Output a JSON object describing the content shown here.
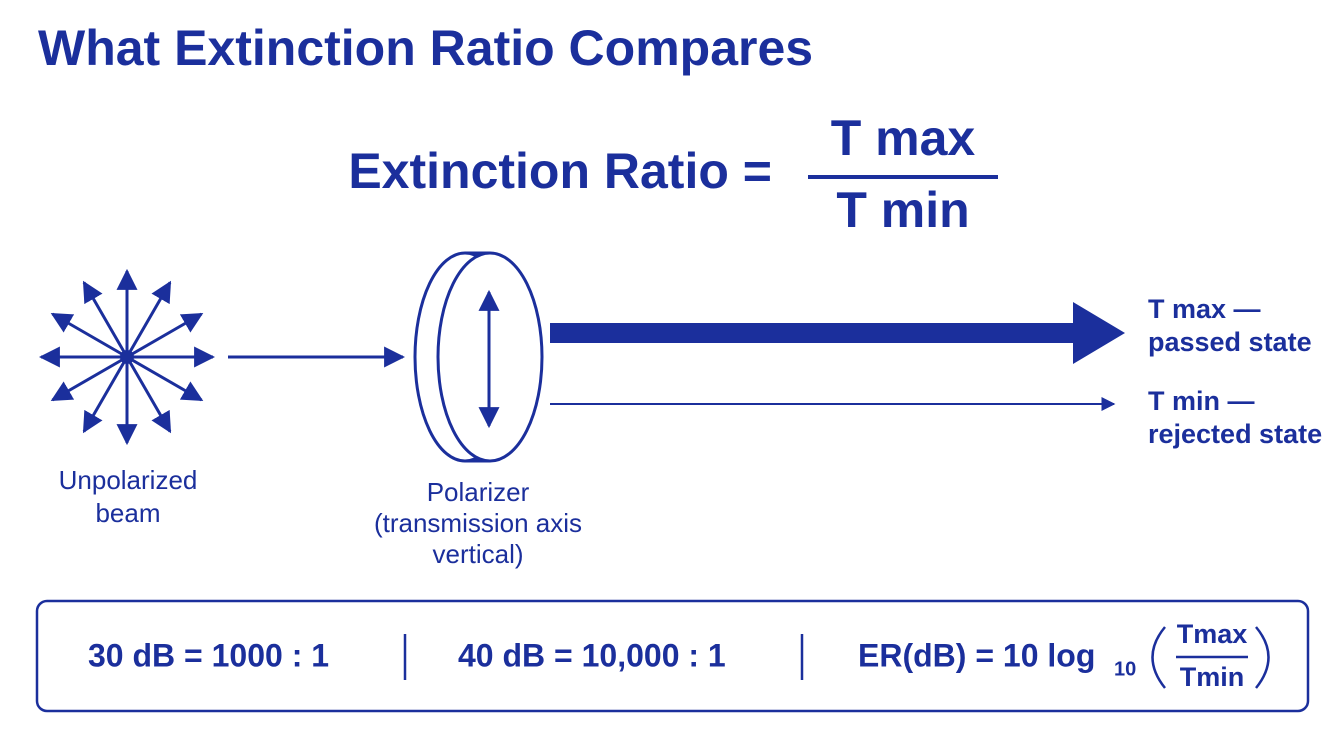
{
  "title": "What Extinction Ratio Compares",
  "formula": {
    "lhs": "Extinction Ratio =",
    "numerator": "T max",
    "denominator": "T min"
  },
  "source": {
    "label": [
      "Unpolarized",
      "beam"
    ]
  },
  "polarizer": {
    "label": [
      "Polarizer",
      "(transmission axis",
      "vertical)"
    ]
  },
  "outputs": [
    {
      "label": [
        "T max —",
        "passed state"
      ]
    },
    {
      "label": [
        "T min —",
        "rejected state"
      ]
    }
  ],
  "footer": {
    "items": [
      "30 dB = 1000 : 1",
      "40 dB = 10,000 : 1"
    ],
    "formula": {
      "lhs": "ER(dB) = 10 log",
      "subscript": "10",
      "numerator": "Tmax",
      "denominator": "Tmin"
    }
  }
}
